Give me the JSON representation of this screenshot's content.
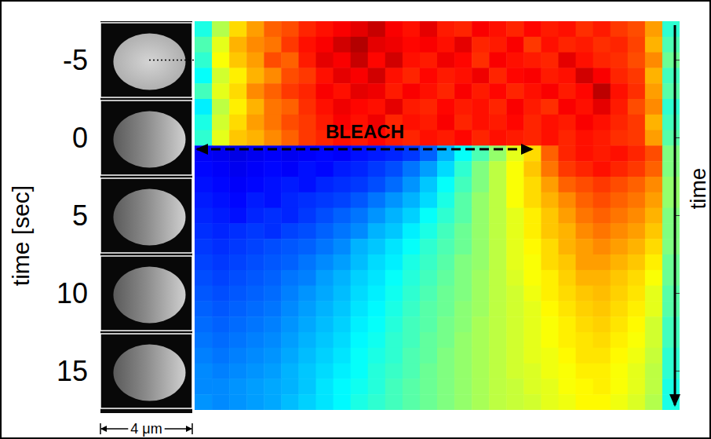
{
  "chart_data": {
    "type": "heatmap",
    "ylabel": "time [sec]",
    "ylim": [
      -7.5,
      17.5
    ],
    "yticks": [
      -5,
      0,
      5,
      10,
      15
    ],
    "tick_labels": "y",
    "zlim": [
      0,
      1
    ],
    "annotations": {
      "bleach": "BLEACH",
      "time_arrow": "time",
      "scale_bar": "4 μm"
    },
    "y": [
      -7,
      -6,
      -5,
      -4,
      -3,
      -2,
      -1,
      0,
      1,
      2,
      3,
      4,
      5,
      6,
      7,
      8,
      9,
      10,
      11,
      12,
      13,
      14,
      15,
      16,
      17
    ],
    "cells": [
      [
        0.4,
        0.55,
        0.66,
        0.72,
        0.78,
        0.8,
        0.84,
        0.86,
        0.88,
        0.9,
        0.93,
        0.88,
        0.86,
        0.9,
        0.85,
        0.84,
        0.88,
        0.86,
        0.84,
        0.87,
        0.85,
        0.86,
        0.83,
        0.85,
        0.82,
        0.8,
        0.72,
        0.42
      ],
      [
        0.45,
        0.6,
        0.7,
        0.74,
        0.76,
        0.82,
        0.86,
        0.88,
        0.92,
        0.95,
        0.9,
        0.89,
        0.87,
        0.88,
        0.86,
        0.9,
        0.84,
        0.85,
        0.88,
        0.82,
        0.86,
        0.84,
        0.85,
        0.83,
        0.84,
        0.81,
        0.7,
        0.45
      ],
      [
        0.42,
        0.62,
        0.68,
        0.72,
        0.8,
        0.78,
        0.85,
        0.9,
        0.88,
        0.93,
        0.87,
        0.92,
        0.86,
        0.85,
        0.89,
        0.87,
        0.83,
        0.88,
        0.86,
        0.85,
        0.84,
        0.9,
        0.86,
        0.84,
        0.83,
        0.8,
        0.74,
        0.48
      ],
      [
        0.38,
        0.58,
        0.64,
        0.7,
        0.74,
        0.8,
        0.82,
        0.86,
        0.9,
        0.88,
        0.92,
        0.86,
        0.84,
        0.87,
        0.85,
        0.86,
        0.89,
        0.84,
        0.87,
        0.88,
        0.85,
        0.86,
        0.92,
        0.88,
        0.84,
        0.82,
        0.7,
        0.44
      ],
      [
        0.44,
        0.6,
        0.66,
        0.74,
        0.78,
        0.82,
        0.84,
        0.88,
        0.86,
        0.9,
        0.89,
        0.85,
        0.88,
        0.86,
        0.84,
        0.88,
        0.85,
        0.87,
        0.84,
        0.86,
        0.88,
        0.85,
        0.87,
        0.94,
        0.86,
        0.83,
        0.72,
        0.46
      ],
      [
        0.36,
        0.56,
        0.64,
        0.7,
        0.76,
        0.78,
        0.83,
        0.86,
        0.89,
        0.87,
        0.86,
        0.9,
        0.85,
        0.84,
        0.87,
        0.85,
        0.86,
        0.84,
        0.88,
        0.85,
        0.83,
        0.88,
        0.86,
        0.9,
        0.85,
        0.8,
        0.74,
        0.42
      ],
      [
        0.4,
        0.58,
        0.66,
        0.72,
        0.76,
        0.8,
        0.82,
        0.85,
        0.88,
        0.86,
        0.89,
        0.84,
        0.86,
        0.85,
        0.88,
        0.84,
        0.86,
        0.85,
        0.87,
        0.84,
        0.86,
        0.85,
        0.88,
        0.86,
        0.84,
        0.82,
        0.7,
        0.44
      ],
      [
        0.42,
        0.6,
        0.68,
        0.7,
        0.74,
        0.78,
        0.82,
        0.84,
        0.86,
        0.85,
        0.87,
        0.85,
        0.84,
        0.86,
        0.85,
        0.87,
        0.84,
        0.86,
        0.85,
        0.84,
        0.86,
        0.84,
        0.86,
        0.85,
        0.83,
        0.82,
        0.72,
        0.46
      ],
      [
        0.12,
        0.11,
        0.1,
        0.11,
        0.12,
        0.11,
        0.12,
        0.13,
        0.12,
        0.14,
        0.15,
        0.16,
        0.18,
        0.22,
        0.3,
        0.38,
        0.45,
        0.52,
        0.6,
        0.66,
        0.78,
        0.84,
        0.86,
        0.85,
        0.86,
        0.84,
        0.8,
        0.5
      ],
      [
        0.13,
        0.12,
        0.11,
        0.12,
        0.13,
        0.12,
        0.14,
        0.13,
        0.15,
        0.16,
        0.18,
        0.2,
        0.24,
        0.28,
        0.34,
        0.42,
        0.5,
        0.56,
        0.62,
        0.68,
        0.76,
        0.82,
        0.84,
        0.86,
        0.84,
        0.82,
        0.78,
        0.5
      ],
      [
        0.14,
        0.13,
        0.12,
        0.13,
        0.14,
        0.15,
        0.14,
        0.16,
        0.17,
        0.18,
        0.2,
        0.23,
        0.27,
        0.32,
        0.38,
        0.44,
        0.5,
        0.56,
        0.62,
        0.66,
        0.72,
        0.78,
        0.8,
        0.82,
        0.8,
        0.78,
        0.74,
        0.52
      ],
      [
        0.15,
        0.14,
        0.13,
        0.15,
        0.14,
        0.16,
        0.17,
        0.18,
        0.19,
        0.21,
        0.24,
        0.27,
        0.3,
        0.34,
        0.4,
        0.46,
        0.52,
        0.56,
        0.62,
        0.66,
        0.7,
        0.74,
        0.78,
        0.8,
        0.78,
        0.76,
        0.72,
        0.52
      ],
      [
        0.16,
        0.15,
        0.14,
        0.16,
        0.17,
        0.16,
        0.18,
        0.2,
        0.22,
        0.24,
        0.27,
        0.3,
        0.33,
        0.38,
        0.42,
        0.46,
        0.52,
        0.56,
        0.6,
        0.64,
        0.68,
        0.72,
        0.76,
        0.78,
        0.76,
        0.74,
        0.7,
        0.5
      ],
      [
        0.17,
        0.16,
        0.17,
        0.18,
        0.17,
        0.19,
        0.2,
        0.22,
        0.24,
        0.26,
        0.3,
        0.32,
        0.36,
        0.4,
        0.44,
        0.48,
        0.52,
        0.56,
        0.6,
        0.64,
        0.68,
        0.7,
        0.74,
        0.76,
        0.74,
        0.72,
        0.68,
        0.5
      ],
      [
        0.18,
        0.17,
        0.18,
        0.19,
        0.2,
        0.21,
        0.22,
        0.24,
        0.26,
        0.3,
        0.32,
        0.35,
        0.38,
        0.42,
        0.45,
        0.48,
        0.52,
        0.56,
        0.6,
        0.63,
        0.66,
        0.7,
        0.72,
        0.74,
        0.72,
        0.7,
        0.66,
        0.5
      ],
      [
        0.19,
        0.18,
        0.19,
        0.2,
        0.21,
        0.22,
        0.24,
        0.26,
        0.28,
        0.31,
        0.34,
        0.36,
        0.4,
        0.43,
        0.46,
        0.5,
        0.52,
        0.56,
        0.6,
        0.62,
        0.66,
        0.68,
        0.72,
        0.72,
        0.7,
        0.68,
        0.64,
        0.48
      ],
      [
        0.2,
        0.19,
        0.2,
        0.21,
        0.22,
        0.24,
        0.25,
        0.28,
        0.3,
        0.33,
        0.35,
        0.38,
        0.41,
        0.44,
        0.47,
        0.5,
        0.53,
        0.56,
        0.59,
        0.62,
        0.64,
        0.67,
        0.7,
        0.7,
        0.68,
        0.66,
        0.62,
        0.48
      ],
      [
        0.21,
        0.2,
        0.21,
        0.22,
        0.23,
        0.25,
        0.27,
        0.29,
        0.31,
        0.34,
        0.36,
        0.39,
        0.42,
        0.45,
        0.48,
        0.5,
        0.53,
        0.56,
        0.58,
        0.61,
        0.64,
        0.66,
        0.68,
        0.69,
        0.67,
        0.65,
        0.6,
        0.46
      ],
      [
        0.22,
        0.21,
        0.22,
        0.23,
        0.24,
        0.26,
        0.28,
        0.3,
        0.32,
        0.35,
        0.37,
        0.4,
        0.43,
        0.46,
        0.48,
        0.51,
        0.53,
        0.56,
        0.58,
        0.6,
        0.63,
        0.65,
        0.67,
        0.68,
        0.66,
        0.64,
        0.6,
        0.46
      ],
      [
        0.23,
        0.22,
        0.23,
        0.24,
        0.25,
        0.27,
        0.29,
        0.31,
        0.33,
        0.36,
        0.38,
        0.41,
        0.44,
        0.46,
        0.49,
        0.51,
        0.54,
        0.56,
        0.58,
        0.6,
        0.62,
        0.64,
        0.66,
        0.67,
        0.65,
        0.63,
        0.58,
        0.44
      ],
      [
        0.24,
        0.23,
        0.24,
        0.25,
        0.26,
        0.28,
        0.3,
        0.32,
        0.34,
        0.37,
        0.39,
        0.42,
        0.44,
        0.47,
        0.49,
        0.52,
        0.54,
        0.56,
        0.58,
        0.6,
        0.62,
        0.64,
        0.65,
        0.66,
        0.64,
        0.62,
        0.58,
        0.44
      ],
      [
        0.25,
        0.24,
        0.25,
        0.26,
        0.27,
        0.29,
        0.31,
        0.33,
        0.35,
        0.38,
        0.4,
        0.42,
        0.45,
        0.47,
        0.5,
        0.52,
        0.54,
        0.56,
        0.58,
        0.6,
        0.61,
        0.63,
        0.65,
        0.65,
        0.63,
        0.61,
        0.57,
        0.42
      ],
      [
        0.26,
        0.25,
        0.26,
        0.27,
        0.28,
        0.3,
        0.32,
        0.34,
        0.36,
        0.38,
        0.41,
        0.43,
        0.45,
        0.48,
        0.5,
        0.52,
        0.54,
        0.56,
        0.58,
        0.59,
        0.61,
        0.62,
        0.64,
        0.64,
        0.62,
        0.6,
        0.56,
        0.42
      ],
      [
        0.26,
        0.26,
        0.27,
        0.28,
        0.29,
        0.3,
        0.32,
        0.35,
        0.37,
        0.39,
        0.41,
        0.44,
        0.46,
        0.48,
        0.5,
        0.52,
        0.54,
        0.56,
        0.57,
        0.59,
        0.6,
        0.62,
        0.63,
        0.64,
        0.62,
        0.6,
        0.56,
        0.4
      ],
      [
        0.27,
        0.26,
        0.27,
        0.28,
        0.29,
        0.31,
        0.33,
        0.35,
        0.37,
        0.4,
        0.42,
        0.44,
        0.46,
        0.48,
        0.5,
        0.52,
        0.54,
        0.56,
        0.57,
        0.58,
        0.6,
        0.61,
        0.63,
        0.63,
        0.61,
        0.59,
        0.55,
        0.4
      ]
    ]
  }
}
